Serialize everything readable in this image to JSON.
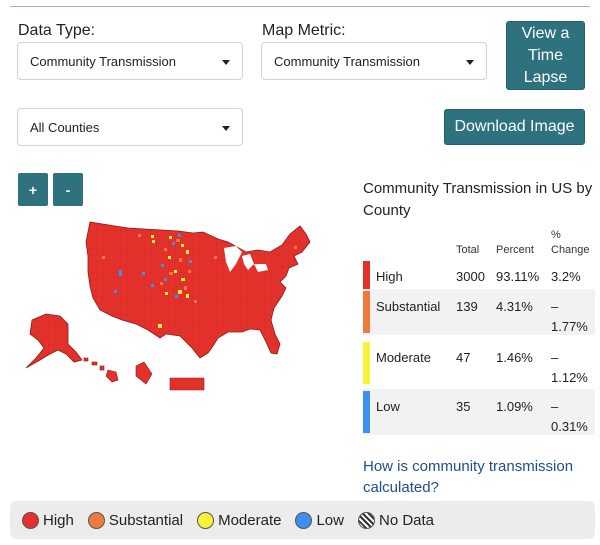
{
  "controls": {
    "data_type_label": "Data Type:",
    "data_type_value": "Community Transmission",
    "map_metric_label": "Map Metric:",
    "map_metric_value": "Community Transmission",
    "county_filter_value": "All Counties",
    "time_lapse_line1": "View a",
    "time_lapse_line2": "Time",
    "time_lapse_line3": "Lapse",
    "download_label": "Download Image",
    "zoom_in_label": "+",
    "zoom_out_label": "-"
  },
  "summary": {
    "title": "Community Transmission in US by County",
    "headers": {
      "total": "Total",
      "percent": "Percent",
      "change_line1": "%",
      "change_line2": "Change"
    },
    "rows": [
      {
        "level": "High",
        "total": "3000",
        "percent": "93.11%",
        "change_line1": "3.2%",
        "change_line2": "",
        "color": "#e5312b"
      },
      {
        "level": "Substantial",
        "total": "139",
        "percent": "4.31%",
        "change_line1": "–",
        "change_line2": "1.77%",
        "color": "#ee7a3c"
      },
      {
        "level": "Moderate",
        "total": "47",
        "percent": "1.46%",
        "change_line1": "–",
        "change_line2": "1.12%",
        "color": "#f7f23a"
      },
      {
        "level": "Low",
        "total": "35",
        "percent": "1.09%",
        "change_line1": "–",
        "change_line2": "0.31%",
        "color": "#3d8ff0"
      }
    ],
    "link_text": "How is community transmission calculated?"
  },
  "legend": [
    {
      "label": "High",
      "color": "#e5312b"
    },
    {
      "label": "Substantial",
      "color": "#ee7a3c"
    },
    {
      "label": "Moderate",
      "color": "#f7f23a"
    },
    {
      "label": "Low",
      "color": "#3d8ff0"
    },
    {
      "label": "No Data",
      "color": "hatched"
    }
  ],
  "colors": {
    "accent": "#2e7280",
    "link": "#1f4f8a",
    "map_fill": "#e5312b"
  }
}
